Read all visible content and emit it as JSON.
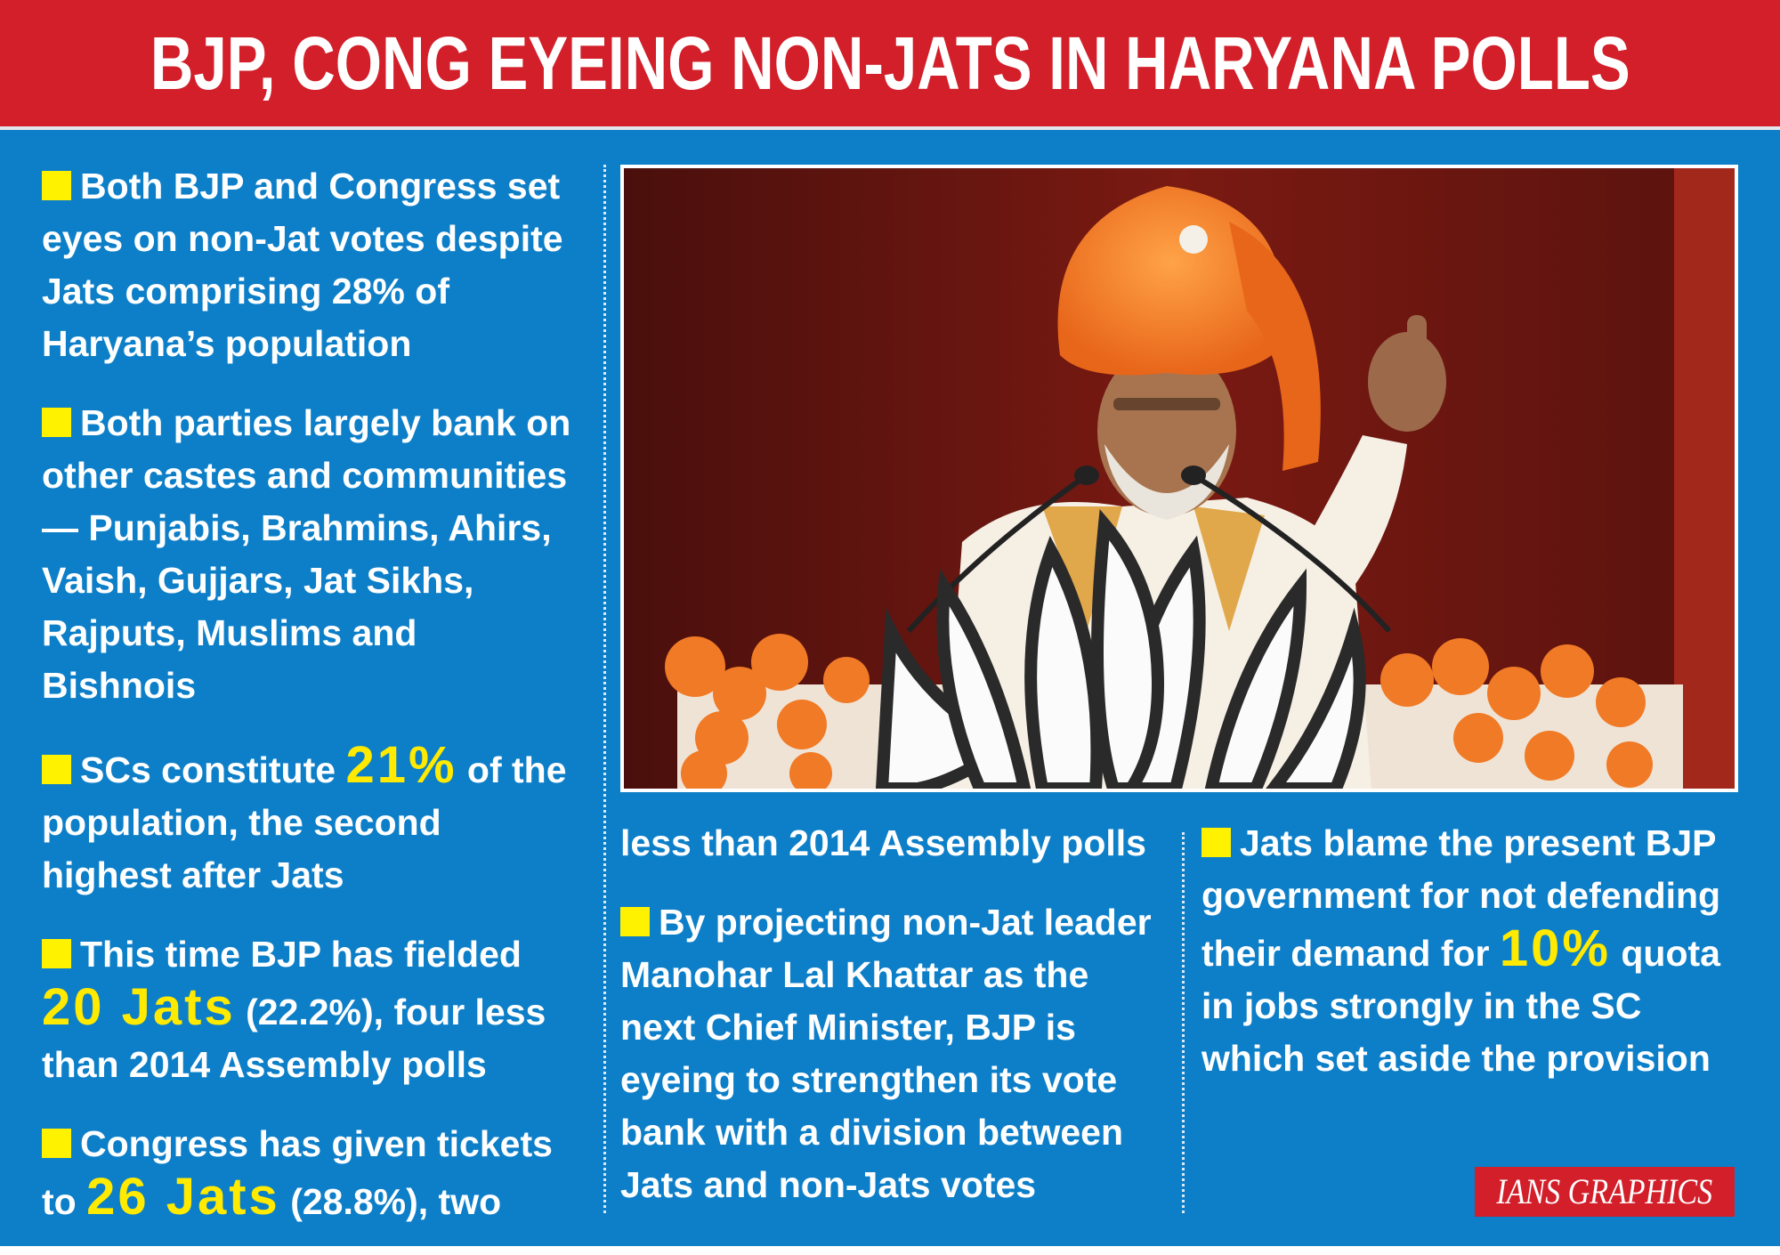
{
  "headline": "BJP, CONG EYEING NON-JATS IN HARYANA POLLS",
  "column1": {
    "p1": "Both BJP and Congress set eyes on non-Jat votes despite Jats comprising 28% of Haryana’s population",
    "p2": "Both parties largely bank on other castes and communities — Punjabis, Brahmins, Ahirs, Vaish, Gujjars, Jat Sikhs, Rajputs, Muslims and Bishnois",
    "p3_a": "SCs constitute ",
    "p3_hl": "21%",
    "p3_b": " of the population, the second highest after Jats",
    "p4_a": "This time BJP has fielded ",
    "p4_hl": "20 Jats",
    "p4_b": " (22.2%), four less than 2014 Assembly polls",
    "p5_a": "Congress has given tickets to ",
    "p5_hl": "26 Jats",
    "p5_b": " (28.8%), two"
  },
  "column2": {
    "continuation": "less than 2014 Assembly polls",
    "p6": "By projecting non-Jat leader Manohar Lal Khattar as the next Chief Minister, BJP is eyeing to strengthen its vote bank with a division between Jats and non-Jats votes"
  },
  "column3": {
    "p7_a": "Jats blame the present BJP government for not defending their demand for ",
    "p7_hl": "10%",
    "p7_b": " quota in jobs strongly in the SC which set aside the provision"
  },
  "credit": "IANS GRAPHICS",
  "colors": {
    "header_red": "#d21f2a",
    "background_blue": "#0d7fc8",
    "bullet_yellow": "#fff200",
    "highlight_yellow": "#ffea00",
    "turban_orange": "#f07a25"
  },
  "photo": {
    "icon": "speaker-at-rally-photo"
  }
}
